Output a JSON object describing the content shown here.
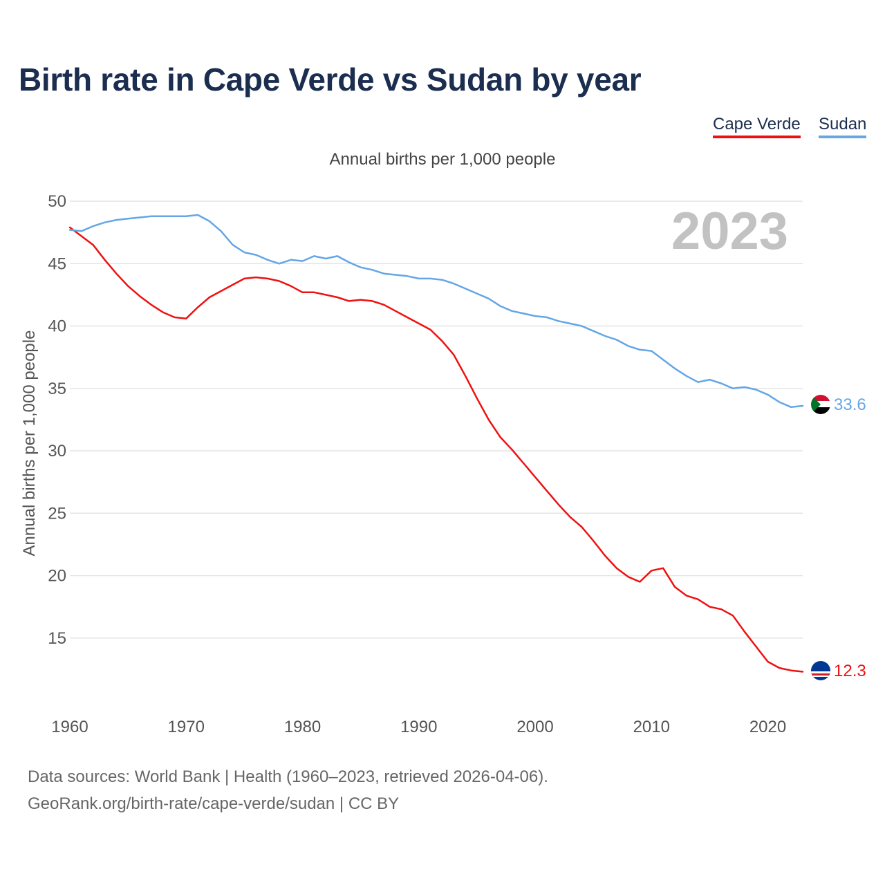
{
  "title": "Birth rate in Cape Verde vs Sudan by year",
  "legend": [
    {
      "label": "Cape Verde",
      "color": "#ee1111"
    },
    {
      "label": "Sudan",
      "color": "#64a6e6"
    }
  ],
  "footer": {
    "line1": "Data sources: World Bank | Health (1960–2023, retrieved 2026-04-06).",
    "line2": "GeoRank.org/birth-rate/cape-verde/sudan | CC BY"
  },
  "chart_data": {
    "type": "line",
    "title": "Birth rate in Cape Verde vs Sudan by year",
    "subtitle": "Annual births per 1,000 people",
    "xlabel": "",
    "ylabel": "Annual births per 1,000 people",
    "year_label": "2023",
    "xlim": [
      1960,
      2023
    ],
    "ylim": [
      10,
      50
    ],
    "x_ticks": [
      1960,
      1970,
      1980,
      1990,
      2000,
      2010,
      2020
    ],
    "y_ticks": [
      15,
      20,
      25,
      30,
      35,
      40,
      45,
      50
    ],
    "grid": true,
    "legend_position": "top-right",
    "x": [
      1960,
      1961,
      1962,
      1963,
      1964,
      1965,
      1966,
      1967,
      1968,
      1969,
      1970,
      1971,
      1972,
      1973,
      1974,
      1975,
      1976,
      1977,
      1978,
      1979,
      1980,
      1981,
      1982,
      1983,
      1984,
      1985,
      1986,
      1987,
      1988,
      1989,
      1990,
      1991,
      1992,
      1993,
      1994,
      1995,
      1996,
      1997,
      1998,
      1999,
      2000,
      2001,
      2002,
      2003,
      2004,
      2005,
      2006,
      2007,
      2008,
      2009,
      2010,
      2011,
      2012,
      2013,
      2014,
      2015,
      2016,
      2017,
      2018,
      2019,
      2020,
      2021,
      2022,
      2023
    ],
    "series": [
      {
        "name": "Cape Verde",
        "color": "#ee1111",
        "end_label": "12.3",
        "values": [
          47.9,
          47.2,
          46.5,
          45.3,
          44.2,
          43.2,
          42.4,
          41.7,
          41.1,
          40.7,
          40.6,
          41.5,
          42.3,
          42.8,
          43.3,
          43.8,
          43.9,
          43.8,
          43.6,
          43.2,
          42.7,
          42.7,
          42.5,
          42.3,
          42.0,
          42.1,
          42.0,
          41.7,
          41.2,
          40.7,
          40.2,
          39.7,
          38.8,
          37.7,
          36.0,
          34.2,
          32.5,
          31.1,
          30.1,
          29.0,
          27.9,
          26.8,
          25.7,
          24.7,
          23.9,
          22.8,
          21.6,
          20.6,
          19.9,
          19.5,
          20.4,
          20.6,
          19.1,
          18.4,
          18.1,
          17.5,
          17.3,
          16.8,
          15.5,
          14.3,
          13.1,
          12.6,
          12.4,
          12.3
        ]
      },
      {
        "name": "Sudan",
        "color": "#64a6e6",
        "end_label": "33.6",
        "values": [
          47.7,
          47.6,
          48.0,
          48.3,
          48.5,
          48.6,
          48.7,
          48.8,
          48.8,
          48.8,
          48.8,
          48.9,
          48.4,
          47.6,
          46.5,
          45.9,
          45.7,
          45.3,
          45.0,
          45.3,
          45.2,
          45.6,
          45.4,
          45.6,
          45.1,
          44.7,
          44.5,
          44.2,
          44.1,
          44.0,
          43.8,
          43.8,
          43.7,
          43.4,
          43.0,
          42.6,
          42.2,
          41.6,
          41.2,
          41.0,
          40.8,
          40.7,
          40.4,
          40.2,
          40.0,
          39.6,
          39.2,
          38.9,
          38.4,
          38.1,
          38.0,
          37.3,
          36.6,
          36.0,
          35.5,
          35.7,
          35.4,
          35.0,
          35.1,
          34.9,
          34.5,
          33.9,
          33.5,
          33.6
        ]
      }
    ]
  }
}
